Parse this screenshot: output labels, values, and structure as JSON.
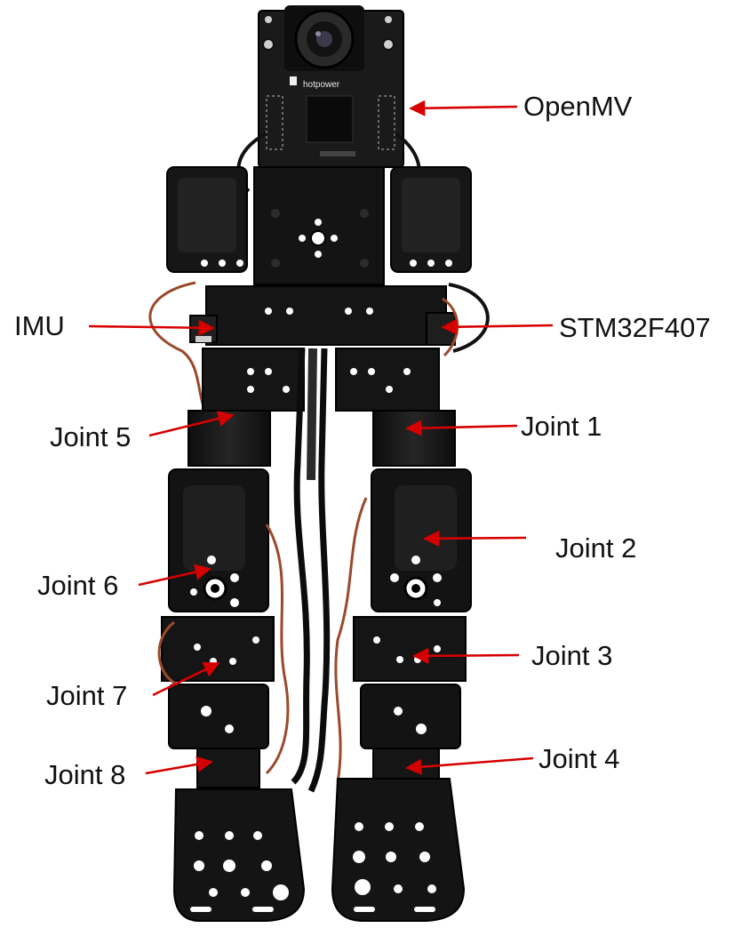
{
  "labels": {
    "openmv": "OpenMV",
    "imu": "IMU",
    "stm32": "STM32F407",
    "joint1": "Joint 1",
    "joint2": "Joint 2",
    "joint3": "Joint 3",
    "joint4": "Joint 4",
    "joint5": "Joint 5",
    "joint6": "Joint 6",
    "joint7": "Joint 7",
    "joint8": "Joint 8"
  },
  "camera_board_text": "hotpower",
  "colors": {
    "arrow": "#d60000",
    "label_text": "#111111",
    "robot_body": "#141414",
    "wire_accent": "#9a4a2a",
    "background": "#ffffff"
  },
  "icons": {
    "robot": "biped-humanoid-robot-photo"
  }
}
